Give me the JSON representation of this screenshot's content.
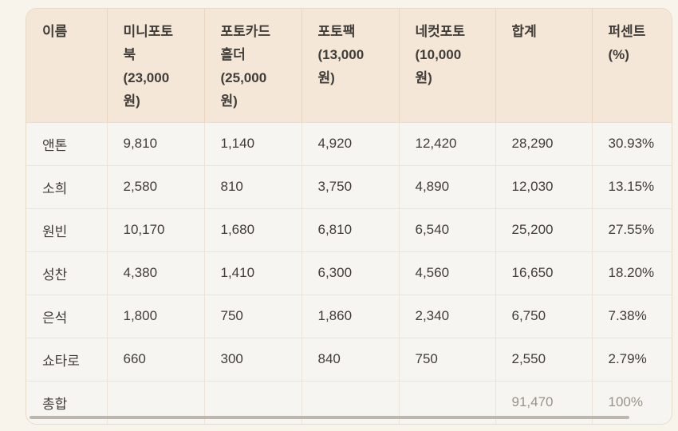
{
  "colors": {
    "page_background": "#f8f3eb",
    "header_background": "#f5e7d8",
    "row_background": "#f7f5f1",
    "border": "#e9decd",
    "text": "#403d38",
    "muted_text": "#97938a",
    "scrollbar": "#bcb8af"
  },
  "table": {
    "columns": [
      {
        "id": "name",
        "label": "이름"
      },
      {
        "id": "mini_photobook",
        "label": "미니포토\n북\n(23,000\n원)"
      },
      {
        "id": "photocard_holder",
        "label": "포토카드\n홀더\n(25,000\n원)"
      },
      {
        "id": "photo_pack",
        "label": "포토팩\n(13,000\n원)"
      },
      {
        "id": "four_cut_photo",
        "label": "네컷포토\n(10,000\n원)"
      },
      {
        "id": "total",
        "label": "합계"
      },
      {
        "id": "percent",
        "label": "퍼센트\n(%)"
      }
    ],
    "rows": [
      {
        "name": "앤톤",
        "values": [
          "9,810",
          "1,140",
          "4,920",
          "12,420",
          "28,290",
          "30.93%"
        ]
      },
      {
        "name": "소희",
        "values": [
          "2,580",
          "810",
          "3,750",
          "4,890",
          "12,030",
          "13.15%"
        ]
      },
      {
        "name": "원빈",
        "values": [
          "10,170",
          "1,680",
          "6,810",
          "6,540",
          "25,200",
          "27.55%"
        ]
      },
      {
        "name": "성찬",
        "values": [
          "4,380",
          "1,410",
          "6,300",
          "4,560",
          "16,650",
          "18.20%"
        ]
      },
      {
        "name": "은석",
        "values": [
          "1,800",
          "750",
          "1,860",
          "2,340",
          "6,750",
          "7.38%"
        ]
      },
      {
        "name": "쇼타로",
        "values": [
          "660",
          "300",
          "840",
          "750",
          "2,550",
          "2.79%"
        ]
      }
    ],
    "footer": {
      "name": "총합",
      "total": "91,470",
      "percent": "100%"
    }
  }
}
